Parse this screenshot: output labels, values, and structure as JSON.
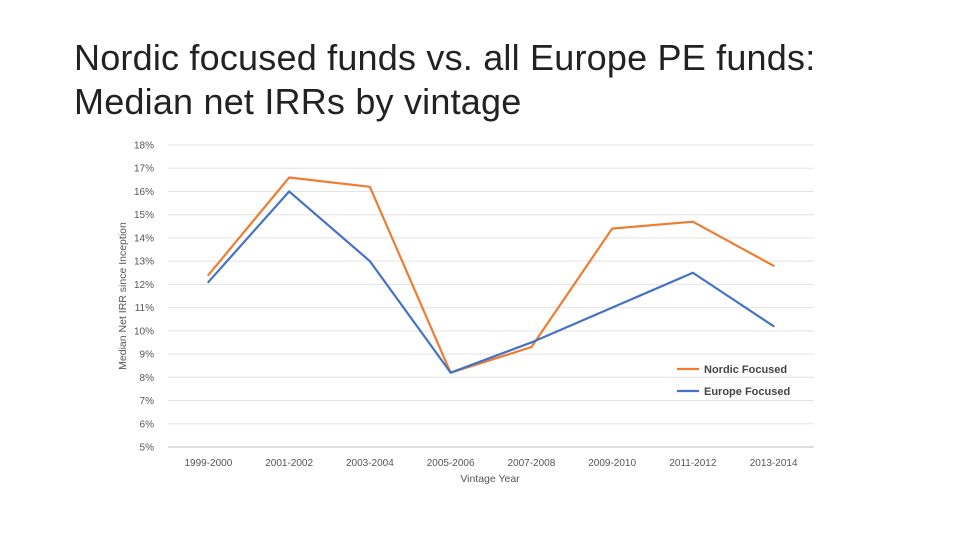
{
  "slide": {
    "title_line1": "Nordic focused funds vs. all Europe PE funds:",
    "title_line2": "Median net IRRs by vintage"
  },
  "chart_data": {
    "type": "line",
    "title": "",
    "xlabel": "Vintage Year",
    "ylabel": "Median Net IRR since Inception",
    "categories": [
      "1999-2000",
      "2001-2002",
      "2003-2004",
      "2005-2006",
      "2007-2008",
      "2009-2010",
      "2011-2012",
      "2013-2014"
    ],
    "ylim": [
      5,
      18
    ],
    "yticks": [
      "5%",
      "6%",
      "7%",
      "8%",
      "9%",
      "10%",
      "11%",
      "12%",
      "13%",
      "14%",
      "15%",
      "16%",
      "17%",
      "18%"
    ],
    "grid": true,
    "legend_position": "right",
    "series": [
      {
        "name": "Nordic Focused",
        "color": "#ED7D31",
        "values": [
          12.4,
          16.6,
          16.2,
          8.2,
          9.3,
          14.4,
          14.7,
          12.8
        ]
      },
      {
        "name": "Europe Focused",
        "color": "#4472C4",
        "values": [
          12.1,
          16.0,
          13.0,
          8.2,
          9.5,
          11.0,
          12.5,
          10.2
        ]
      }
    ]
  }
}
